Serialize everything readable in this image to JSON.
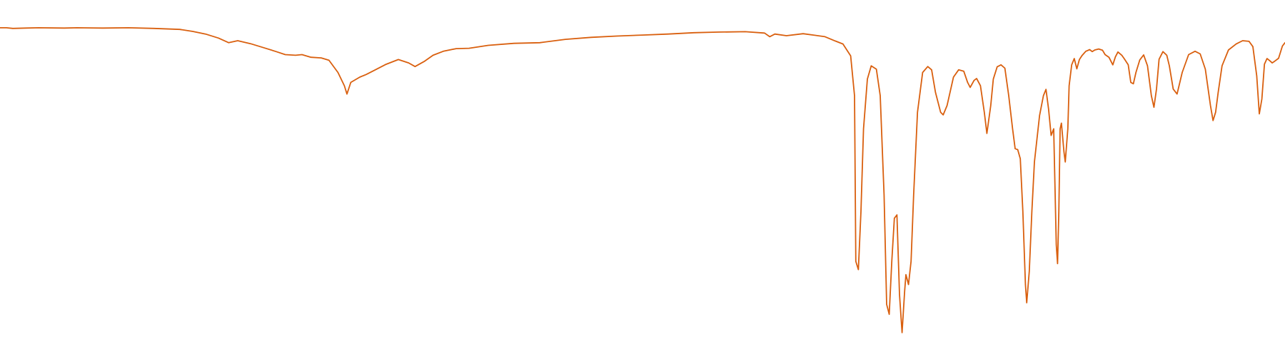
{
  "chart_data": {
    "type": "line",
    "title": "",
    "xlabel": "",
    "ylabel": "",
    "axes_visible": false,
    "grid": false,
    "legend": "none",
    "line_color": "#d95f0e",
    "xlim": [
      0,
      100
    ],
    "ylim": [
      0,
      100
    ],
    "series": [
      {
        "points": [
          [
            0.0,
            95.5
          ],
          [
            0.5,
            95.5
          ],
          [
            1.0,
            95.3
          ],
          [
            2.0,
            95.4
          ],
          [
            3.0,
            95.5
          ],
          [
            5.0,
            95.4
          ],
          [
            6.0,
            95.5
          ],
          [
            8.0,
            95.4
          ],
          [
            10.0,
            95.5
          ],
          [
            12.0,
            95.3
          ],
          [
            14.0,
            95.0
          ],
          [
            15.0,
            94.4
          ],
          [
            16.0,
            93.6
          ],
          [
            17.0,
            92.4
          ],
          [
            17.8,
            91.0
          ],
          [
            18.5,
            91.6
          ],
          [
            19.5,
            90.7
          ],
          [
            20.5,
            89.5
          ],
          [
            21.5,
            88.3
          ],
          [
            22.2,
            87.4
          ],
          [
            23.0,
            87.2
          ],
          [
            23.5,
            87.4
          ],
          [
            24.2,
            86.6
          ],
          [
            25.0,
            86.4
          ],
          [
            25.6,
            85.7
          ],
          [
            26.3,
            82.0
          ],
          [
            26.8,
            78.0
          ],
          [
            27.0,
            75.5
          ],
          [
            27.3,
            79.0
          ],
          [
            28.0,
            80.6
          ],
          [
            28.5,
            81.4
          ],
          [
            29.3,
            83.0
          ],
          [
            30.0,
            84.4
          ],
          [
            31.0,
            85.9
          ],
          [
            31.8,
            84.9
          ],
          [
            32.3,
            83.8
          ],
          [
            33.0,
            85.3
          ],
          [
            33.7,
            87.2
          ],
          [
            34.5,
            88.4
          ],
          [
            35.5,
            89.2
          ],
          [
            36.5,
            89.3
          ],
          [
            38.0,
            90.2
          ],
          [
            40.0,
            90.8
          ],
          [
            42.0,
            91.0
          ],
          [
            44.0,
            92.0
          ],
          [
            46.0,
            92.6
          ],
          [
            48.0,
            93.0
          ],
          [
            50.0,
            93.3
          ],
          [
            52.0,
            93.6
          ],
          [
            54.0,
            94.0
          ],
          [
            56.0,
            94.2
          ],
          [
            58.0,
            94.3
          ],
          [
            59.5,
            93.9
          ],
          [
            59.9,
            92.8
          ],
          [
            60.3,
            93.6
          ],
          [
            61.2,
            93.1
          ],
          [
            62.5,
            93.7
          ],
          [
            63.3,
            93.3
          ],
          [
            64.2,
            92.8
          ],
          [
            65.0,
            91.5
          ],
          [
            65.6,
            90.6
          ],
          [
            66.2,
            87.0
          ],
          [
            66.5,
            75.0
          ],
          [
            66.6,
            25.0
          ],
          [
            66.8,
            22.5
          ],
          [
            67.0,
            40.0
          ],
          [
            67.2,
            65.0
          ],
          [
            67.5,
            80.0
          ],
          [
            67.8,
            84.0
          ],
          [
            68.2,
            83.0
          ],
          [
            68.5,
            75.0
          ],
          [
            68.8,
            45.0
          ],
          [
            69.0,
            12.0
          ],
          [
            69.2,
            9.0
          ],
          [
            69.4,
            25.0
          ],
          [
            69.6,
            38.0
          ],
          [
            69.8,
            39.0
          ],
          [
            70.0,
            15.0
          ],
          [
            70.2,
            3.5
          ],
          [
            70.4,
            16.0
          ],
          [
            70.5,
            21.0
          ],
          [
            70.7,
            18.0
          ],
          [
            70.9,
            25.0
          ],
          [
            71.1,
            45.0
          ],
          [
            71.4,
            70.0
          ],
          [
            71.8,
            82.0
          ],
          [
            72.2,
            83.8
          ],
          [
            72.5,
            82.8
          ],
          [
            72.8,
            76.0
          ],
          [
            73.2,
            70.0
          ],
          [
            73.4,
            69.2
          ],
          [
            73.7,
            72.0
          ],
          [
            74.2,
            80.6
          ],
          [
            74.6,
            82.8
          ],
          [
            75.0,
            82.4
          ],
          [
            75.3,
            79.0
          ],
          [
            75.5,
            77.5
          ],
          [
            75.8,
            79.6
          ],
          [
            76.0,
            80.2
          ],
          [
            76.3,
            78.0
          ],
          [
            76.6,
            70.0
          ],
          [
            76.8,
            63.6
          ],
          [
            77.1,
            72.0
          ],
          [
            77.3,
            80.0
          ],
          [
            77.6,
            83.7
          ],
          [
            77.9,
            84.3
          ],
          [
            78.2,
            83.3
          ],
          [
            78.5,
            75.0
          ],
          [
            78.8,
            65.0
          ],
          [
            79.0,
            59.0
          ],
          [
            79.2,
            58.7
          ],
          [
            79.4,
            56.0
          ],
          [
            79.6,
            40.0
          ],
          [
            79.8,
            18.0
          ],
          [
            79.9,
            12.5
          ],
          [
            80.1,
            22.0
          ],
          [
            80.3,
            40.0
          ],
          [
            80.5,
            55.0
          ],
          [
            80.7,
            62.0
          ],
          [
            80.9,
            69.0
          ],
          [
            81.2,
            75.0
          ],
          [
            81.4,
            76.9
          ],
          [
            81.6,
            71.0
          ],
          [
            81.8,
            63.0
          ],
          [
            82.0,
            65.0
          ],
          [
            82.2,
            30.0
          ],
          [
            82.3,
            24.3
          ],
          [
            82.4,
            40.0
          ],
          [
            82.5,
            65.0
          ],
          [
            82.6,
            66.7
          ],
          [
            82.8,
            58.0
          ],
          [
            82.9,
            55.0
          ],
          [
            83.1,
            65.0
          ],
          [
            83.2,
            78.0
          ],
          [
            83.4,
            84.3
          ],
          [
            83.6,
            86.2
          ],
          [
            83.8,
            83.1
          ],
          [
            84.0,
            85.9
          ],
          [
            84.2,
            87.1
          ],
          [
            84.5,
            88.4
          ],
          [
            84.8,
            88.9
          ],
          [
            85.0,
            88.3
          ],
          [
            85.2,
            88.8
          ],
          [
            85.5,
            89.1
          ],
          [
            85.8,
            88.7
          ],
          [
            86.0,
            87.4
          ],
          [
            86.3,
            86.6
          ],
          [
            86.6,
            84.3
          ],
          [
            86.8,
            86.7
          ],
          [
            87.0,
            88.2
          ],
          [
            87.3,
            87.2
          ],
          [
            87.5,
            86.1
          ],
          [
            87.8,
            84.3
          ],
          [
            88.0,
            79.0
          ],
          [
            88.2,
            78.6
          ],
          [
            88.4,
            82.0
          ],
          [
            88.7,
            85.8
          ],
          [
            89.0,
            87.3
          ],
          [
            89.3,
            84.0
          ],
          [
            89.6,
            75.0
          ],
          [
            89.8,
            71.5
          ],
          [
            90.0,
            77.0
          ],
          [
            90.2,
            86.0
          ],
          [
            90.5,
            88.3
          ],
          [
            90.8,
            87.2
          ],
          [
            91.0,
            84.0
          ],
          [
            91.3,
            77.0
          ],
          [
            91.6,
            75.5
          ],
          [
            92.0,
            82.0
          ],
          [
            92.5,
            87.4
          ],
          [
            93.0,
            88.4
          ],
          [
            93.4,
            87.6
          ],
          [
            93.8,
            83.0
          ],
          [
            94.2,
            72.0
          ],
          [
            94.4,
            67.5
          ],
          [
            94.6,
            70.0
          ],
          [
            94.8,
            76.0
          ],
          [
            95.1,
            84.0
          ],
          [
            95.6,
            88.8
          ],
          [
            96.2,
            90.6
          ],
          [
            96.7,
            91.6
          ],
          [
            97.2,
            91.4
          ],
          [
            97.5,
            89.8
          ],
          [
            97.8,
            81.0
          ],
          [
            98.0,
            69.5
          ],
          [
            98.2,
            74.0
          ],
          [
            98.4,
            84.5
          ],
          [
            98.6,
            86.2
          ],
          [
            98.8,
            85.6
          ],
          [
            99.0,
            84.9
          ],
          [
            99.2,
            85.4
          ],
          [
            99.5,
            86.3
          ],
          [
            99.8,
            90.0
          ],
          [
            100.0,
            91.0
          ]
        ]
      }
    ]
  }
}
